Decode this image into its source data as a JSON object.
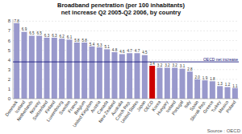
{
  "chart_data": {
    "type": "bar",
    "title": "Broadband penetration (per 100 inhabitants) net increase Q2 2005-Q2 2006, by country",
    "source": "Source : OECD",
    "categories": [
      "Denmark",
      "Iceland",
      "Netherlands",
      "Norway",
      "Switzerland",
      "Finland",
      "Luxembourg",
      "Sweden",
      "France",
      "Belgium",
      "United Kingdom",
      "Austria",
      "Canada",
      "New Zealand",
      "Australia",
      "Czech Rep.",
      "United States",
      "Japan",
      "OECD",
      "Korea",
      "Hungary",
      "Ireland",
      "Portugal",
      "Italy",
      "Spain",
      "Slovak Rep.",
      "Greece",
      "Turkey",
      "Mexico",
      "Poland"
    ],
    "values": [
      7.8,
      6.9,
      6.5,
      6.5,
      6.3,
      6.3,
      6.2,
      6.1,
      5.8,
      5.8,
      5.4,
      5.3,
      5.1,
      4.8,
      4.6,
      4.7,
      4.7,
      4.5,
      3.4,
      3.2,
      3.2,
      3.2,
      3.1,
      2.8,
      2.0,
      1.9,
      1.8,
      1.3,
      1.2,
      1.1
    ],
    "value_labels": [
      "7.8",
      "6.9",
      "6.5",
      "6.5",
      "6.3",
      "6.3",
      "6.2",
      "6.1",
      "5.8",
      "5.8",
      "5.4",
      "5.3",
      "5.1",
      "4.8",
      "4.6",
      "4.7",
      "4.7",
      "4.5",
      "3.4",
      "3.2",
      "3.2",
      "3.2",
      "3.1",
      "2.8",
      "2.0",
      "1.9",
      "1.8",
      "1.3",
      "1.2",
      "1.1"
    ],
    "colors": [
      "#9999cc",
      "#9999cc",
      "#9999cc",
      "#9999cc",
      "#9999cc",
      "#9999cc",
      "#9999cc",
      "#9999cc",
      "#9999cc",
      "#9999cc",
      "#9999cc",
      "#9999cc",
      "#9999cc",
      "#9999cc",
      "#9999cc",
      "#9999cc",
      "#9999cc",
      "#9999cc",
      "#cc0000",
      "#9999cc",
      "#9999cc",
      "#9999cc",
      "#9999cc",
      "#9999cc",
      "#9999cc",
      "#9999cc",
      "#9999cc",
      "#9999cc",
      "#9999cc",
      "#9999cc"
    ],
    "reference_line": {
      "value": 3.8,
      "label": "OECD net increase",
      "color": "#1a1a80"
    },
    "ylim": [
      0,
      8.2
    ],
    "yticks": [
      0,
      1,
      2,
      3,
      4,
      5,
      6,
      7,
      8
    ],
    "grid": true,
    "data_labels": true
  }
}
